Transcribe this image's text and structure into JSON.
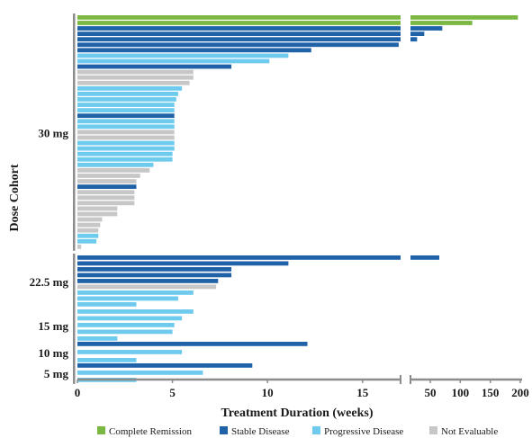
{
  "chart_data": {
    "type": "bar",
    "orientation": "horizontal",
    "title": "",
    "xlabel": "Treatment Duration (weeks)",
    "ylabel": "Dose Cohort",
    "x_axis": {
      "broken": true,
      "segment_1": {
        "range": [
          0,
          17
        ],
        "ticks": [
          0,
          5,
          10,
          15
        ]
      },
      "segment_2": {
        "range": [
          17,
          200
        ],
        "ticks": [
          50,
          100,
          150,
          200
        ]
      }
    },
    "colors": {
      "complete_remission": "#7ab842",
      "stable_disease": "#1f62a8",
      "progressive_disease": "#6ecbee",
      "not_evaluable": "#c7c7c7"
    },
    "legend": {
      "position": "bottom",
      "entries": [
        {
          "key": "complete_remission",
          "label": "Complete Remission"
        },
        {
          "key": "stable_disease",
          "label": "Stable Disease"
        },
        {
          "key": "progressive_disease",
          "label": "Progressive Disease"
        },
        {
          "key": "not_evaluable",
          "label": "Not Evaluable"
        }
      ]
    },
    "cohorts": [
      {
        "label": "30 mg",
        "bars": [
          {
            "value": 196,
            "status": "complete_remission"
          },
          {
            "value": 120,
            "status": "complete_remission"
          },
          {
            "value": 70,
            "status": "stable_disease"
          },
          {
            "value": 40,
            "status": "stable_disease"
          },
          {
            "value": 28,
            "status": "stable_disease"
          },
          {
            "value": 16.9,
            "status": "stable_disease"
          },
          {
            "value": 12.3,
            "status": "stable_disease"
          },
          {
            "value": 11.1,
            "status": "progressive_disease"
          },
          {
            "value": 10.1,
            "status": "progressive_disease"
          },
          {
            "value": 8.1,
            "status": "stable_disease"
          },
          {
            "value": 6.1,
            "status": "not_evaluable"
          },
          {
            "value": 6.1,
            "status": "not_evaluable"
          },
          {
            "value": 5.9,
            "status": "not_evaluable"
          },
          {
            "value": 5.5,
            "status": "progressive_disease"
          },
          {
            "value": 5.3,
            "status": "progressive_disease"
          },
          {
            "value": 5.2,
            "status": "progressive_disease"
          },
          {
            "value": 5.1,
            "status": "progressive_disease"
          },
          {
            "value": 5.1,
            "status": "progressive_disease"
          },
          {
            "value": 5.1,
            "status": "stable_disease"
          },
          {
            "value": 5.1,
            "status": "progressive_disease"
          },
          {
            "value": 5.1,
            "status": "progressive_disease"
          },
          {
            "value": 5.1,
            "status": "not_evaluable"
          },
          {
            "value": 5.1,
            "status": "not_evaluable"
          },
          {
            "value": 5.1,
            "status": "progressive_disease"
          },
          {
            "value": 5.1,
            "status": "progressive_disease"
          },
          {
            "value": 5.0,
            "status": "progressive_disease"
          },
          {
            "value": 5.0,
            "status": "progressive_disease"
          },
          {
            "value": 4.0,
            "status": "progressive_disease"
          },
          {
            "value": 3.8,
            "status": "not_evaluable"
          },
          {
            "value": 3.3,
            "status": "not_evaluable"
          },
          {
            "value": 3.1,
            "status": "not_evaluable"
          },
          {
            "value": 3.1,
            "status": "stable_disease"
          },
          {
            "value": 3.0,
            "status": "not_evaluable"
          },
          {
            "value": 3.0,
            "status": "not_evaluable"
          },
          {
            "value": 3.0,
            "status": "not_evaluable"
          },
          {
            "value": 2.1,
            "status": "not_evaluable"
          },
          {
            "value": 2.1,
            "status": "not_evaluable"
          },
          {
            "value": 1.3,
            "status": "not_evaluable"
          },
          {
            "value": 1.2,
            "status": "not_evaluable"
          },
          {
            "value": 1.1,
            "status": "not_evaluable"
          },
          {
            "value": 1.1,
            "status": "progressive_disease"
          },
          {
            "value": 1.0,
            "status": "progressive_disease"
          },
          {
            "value": 0.2,
            "status": "not_evaluable"
          }
        ]
      },
      {
        "label": "22.5 mg",
        "bars": [
          {
            "value": 65,
            "status": "stable_disease"
          },
          {
            "value": 11.1,
            "status": "stable_disease"
          },
          {
            "value": 8.1,
            "status": "stable_disease"
          },
          {
            "value": 8.1,
            "status": "stable_disease"
          },
          {
            "value": 7.4,
            "status": "stable_disease"
          },
          {
            "value": 7.3,
            "status": "not_evaluable"
          },
          {
            "value": 6.1,
            "status": "progressive_disease"
          },
          {
            "value": 5.3,
            "status": "progressive_disease"
          },
          {
            "value": 3.1,
            "status": "progressive_disease"
          }
        ]
      },
      {
        "label": "15 mg",
        "bars": [
          {
            "value": 6.1,
            "status": "progressive_disease"
          },
          {
            "value": 5.5,
            "status": "progressive_disease"
          },
          {
            "value": 5.1,
            "status": "progressive_disease"
          },
          {
            "value": 5.0,
            "status": "progressive_disease"
          },
          {
            "value": 2.1,
            "status": "progressive_disease"
          }
        ]
      },
      {
        "label": "10 mg",
        "bars": [
          {
            "value": 12.1,
            "status": "stable_disease"
          },
          {
            "value": 5.5,
            "status": "progressive_disease"
          },
          {
            "value": 3.1,
            "status": "progressive_disease"
          }
        ]
      },
      {
        "label": "5 mg",
        "bars": [
          {
            "value": 9.2,
            "status": "stable_disease"
          },
          {
            "value": 6.6,
            "status": "progressive_disease"
          },
          {
            "value": 3.1,
            "status": "progressive_disease"
          }
        ]
      }
    ]
  }
}
